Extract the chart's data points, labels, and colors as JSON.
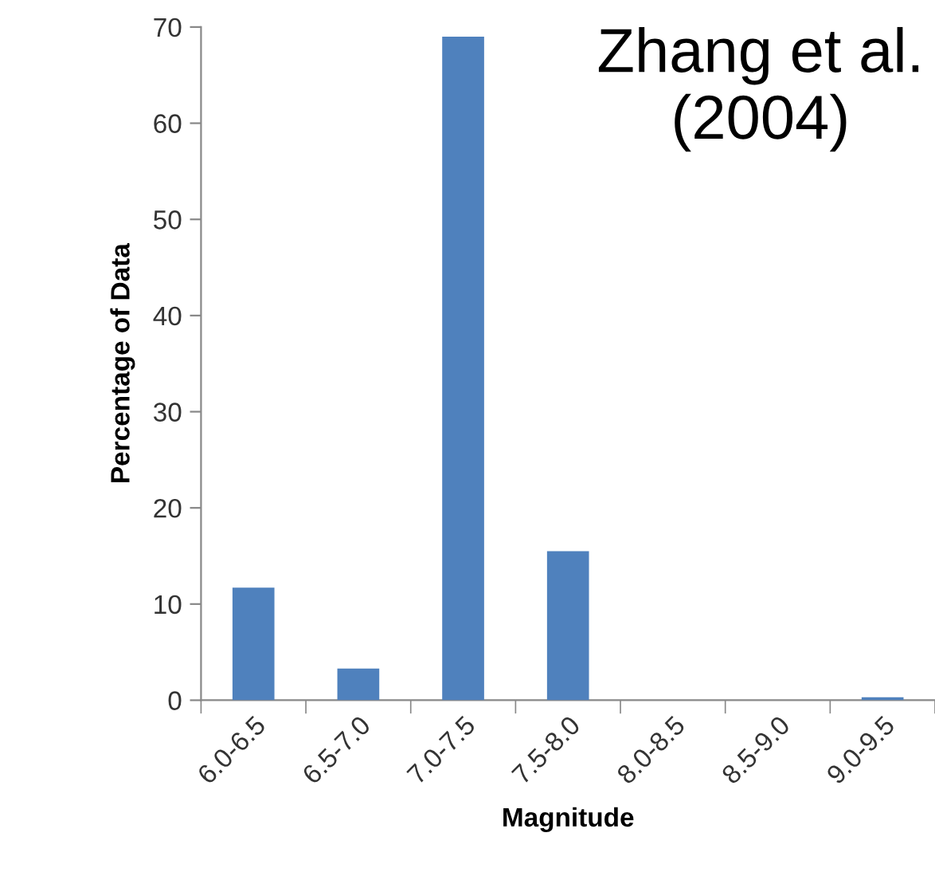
{
  "chart_data": {
    "type": "bar",
    "xlabel": "Magnitude",
    "ylabel": "Percentage of Data",
    "categories": [
      "6.0-6.5",
      "6.5-7.0",
      "7.0-7.5",
      "7.5-8.0",
      "8.0-8.5",
      "8.5-9.0",
      "9.0-9.5"
    ],
    "values": [
      11.7,
      3.3,
      69,
      15.5,
      0,
      0,
      0.3
    ],
    "color": "#4f81bd",
    "ylim": [
      0,
      70
    ],
    "yticks": [
      0,
      10,
      20,
      30,
      40,
      50,
      60,
      70
    ],
    "grid": false,
    "annotations": [
      "Zhang et al.\n(2004)"
    ]
  }
}
